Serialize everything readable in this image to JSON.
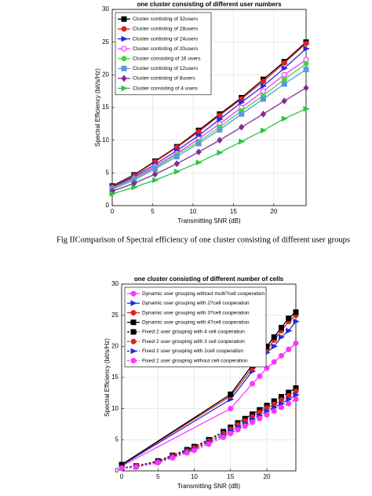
{
  "caption": "Fig IIComparison of Spectral efficiency of one cluster consisting of different user groups",
  "chart_data": [
    {
      "type": "line",
      "title": "one cluster consisting of different user numbers",
      "x_label": "Transmitting SNR (dB)",
      "y_label": "Spectral Efficiency (bit/s/Hz)",
      "xlim": [
        0,
        24
      ],
      "xticks": [
        0,
        5,
        10,
        15,
        20
      ],
      "ylim": [
        0,
        30
      ],
      "yticks": [
        0,
        5,
        10,
        15,
        20,
        25,
        30
      ],
      "grid": true,
      "legend": "upper-left",
      "x": [
        0,
        2.7,
        5.3,
        8,
        10.7,
        13.3,
        16,
        18.7,
        21.3,
        24
      ],
      "series": [
        {
          "name": "Cluster contisting of 32users",
          "color": "#000000",
          "marker": "square",
          "values": [
            3,
            4.7,
            6.8,
            9,
            11.5,
            14,
            16.5,
            19.3,
            22,
            25
          ]
        },
        {
          "name": "Cluster contisting of 28users",
          "color": "#e0201b",
          "marker": "circle",
          "values": [
            2.9,
            4.6,
            6.7,
            8.9,
            11.3,
            13.8,
            16.3,
            19,
            21.8,
            24.8
          ]
        },
        {
          "name": "Cluster contisting of 24users",
          "color": "#1f2be0",
          "marker": "triangle-right",
          "values": [
            2.8,
            4.4,
            6.3,
            8.4,
            10.7,
            13.2,
            15.8,
            18.3,
            21,
            24
          ]
        },
        {
          "name": "Cluster contisting of 20users",
          "color": "#ff33ff",
          "marker": "circle-open",
          "values": [
            2.7,
            4.2,
            6,
            8,
            10.2,
            12.5,
            15,
            17.5,
            20,
            22.3
          ]
        },
        {
          "name": "Cluster consisting of 16 users",
          "color": "#44d444",
          "marker": "circle",
          "values": [
            2.6,
            4.1,
            5.8,
            7.8,
            9.8,
            12,
            14.5,
            16.8,
            19.3,
            21.7
          ]
        },
        {
          "name": "Cluster contisting of 12users",
          "color": "#5a9bd5",
          "marker": "square",
          "values": [
            2.5,
            3.9,
            5.6,
            7.5,
            9.5,
            11.6,
            14,
            16.3,
            18.6,
            20.8
          ]
        },
        {
          "name": "Cluster contisting of 8users",
          "color": "#7e2f8e",
          "marker": "diamond",
          "values": [
            2.2,
            3.4,
            4.8,
            6.4,
            8.2,
            10,
            12,
            14,
            16,
            18
          ]
        },
        {
          "name": "Cluster consisting of 4 users",
          "color": "#2ec449",
          "marker": "triangle-right",
          "values": [
            1.8,
            2.8,
            3.9,
            5.2,
            6.6,
            8.1,
            9.8,
            11.5,
            13.3,
            14.8
          ]
        }
      ]
    },
    {
      "type": "line",
      "title": "one cluster consisting of different number of cells",
      "x_label": "Transmitting SNR (dB)",
      "y_label": "Spectral Efficiency (bit/s/Hz)",
      "xlim": [
        0,
        24
      ],
      "xticks": [
        0,
        5,
        10,
        15,
        20
      ],
      "ylim": [
        0,
        30
      ],
      "yticks": [
        0,
        5,
        10,
        15,
        20,
        25,
        30
      ],
      "grid": true,
      "legend": "upper-left",
      "series": [
        {
          "name": "Dynamic user grouping without multi?cell cooperation",
          "color": "#ff33ff",
          "marker": "circle",
          "linestyle": "solid",
          "x": [
            0,
            15,
            18,
            19,
            20,
            21,
            22,
            23,
            24
          ],
          "values": [
            0.8,
            10,
            14,
            15.2,
            16.5,
            17.5,
            18.5,
            19.5,
            20.5
          ]
        },
        {
          "name": "Dynamic user grouping with 2?cell cooperation",
          "color": "#1f2be0",
          "marker": "triangle-right",
          "linestyle": "solid",
          "x": [
            0,
            15,
            18,
            19,
            20,
            21,
            22,
            23,
            24
          ],
          "values": [
            0.9,
            11.5,
            16,
            17.5,
            19,
            20,
            21.5,
            22.5,
            24
          ]
        },
        {
          "name": "Dynamic user grouping with 3?cell cooperation",
          "color": "#e0201b",
          "marker": "circle",
          "linestyle": "solid",
          "x": [
            0,
            15,
            18,
            19,
            20,
            21,
            22,
            23,
            24
          ],
          "values": [
            1,
            12,
            16.5,
            18,
            19.5,
            21,
            22.5,
            24,
            25
          ]
        },
        {
          "name": "Dynamic user grouping with 4?cell cooperation",
          "color": "#000000",
          "marker": "square",
          "linestyle": "solid",
          "x": [
            0,
            15,
            18,
            19,
            20,
            21,
            22,
            23,
            24
          ],
          "values": [
            1,
            12.3,
            17,
            18.5,
            20,
            21.5,
            23,
            24.5,
            25.5
          ]
        },
        {
          "name": "Fixed 2 user grouping with 4 cell cooperation",
          "color": "#000000",
          "marker": "square",
          "linestyle": "dashed",
          "x": [
            0,
            2,
            5,
            7,
            9,
            10,
            12,
            14,
            15,
            16,
            17,
            18,
            19,
            20,
            21,
            22,
            23,
            24
          ],
          "values": [
            0.5,
            0.8,
            1.6,
            2.5,
            3.4,
            3.9,
            5,
            6.3,
            7,
            7.7,
            8.4,
            9.1,
            9.8,
            10.5,
            11.2,
            11.9,
            12.6,
            13.3
          ]
        },
        {
          "name": "Fixed 2 user grouping with 3 cell cooperation",
          "color": "#e0201b",
          "marker": "circle",
          "linestyle": "dashed",
          "x": [
            0,
            2,
            5,
            7,
            9,
            10,
            12,
            14,
            15,
            16,
            17,
            18,
            19,
            20,
            21,
            22,
            23,
            24
          ],
          "values": [
            0.5,
            0.8,
            1.5,
            2.4,
            3.2,
            3.7,
            4.8,
            6,
            6.7,
            7.4,
            8,
            8.7,
            9.4,
            10.1,
            10.7,
            11.4,
            12.1,
            12.8
          ]
        },
        {
          "name": "Fixed 2 user grouping with 2cell cooperation",
          "color": "#1f2be0",
          "marker": "triangle-right",
          "linestyle": "dashed",
          "x": [
            0,
            2,
            5,
            7,
            9,
            10,
            12,
            14,
            15,
            16,
            17,
            18,
            19,
            20,
            21,
            22,
            23,
            24
          ],
          "values": [
            0.5,
            0.7,
            1.4,
            2.3,
            3.1,
            3.5,
            4.6,
            5.7,
            6.4,
            7,
            7.6,
            8.3,
            8.9,
            9.6,
            10.2,
            10.8,
            11.5,
            12.2
          ]
        },
        {
          "name": "Fixed 2 user grouping without cell cooperation",
          "color": "#ff33ff",
          "marker": "circle",
          "linestyle": "dashed",
          "x": [
            0,
            2,
            5,
            7,
            9,
            10,
            12,
            14,
            15,
            16,
            17,
            18,
            19,
            20,
            21,
            22,
            23,
            24
          ],
          "values": [
            0.4,
            0.6,
            1.3,
            2.1,
            2.9,
            3.3,
            4.3,
            5.4,
            6,
            6.6,
            7.2,
            7.8,
            8.4,
            9,
            9.6,
            10.2,
            10.8,
            11.5
          ]
        }
      ]
    }
  ]
}
